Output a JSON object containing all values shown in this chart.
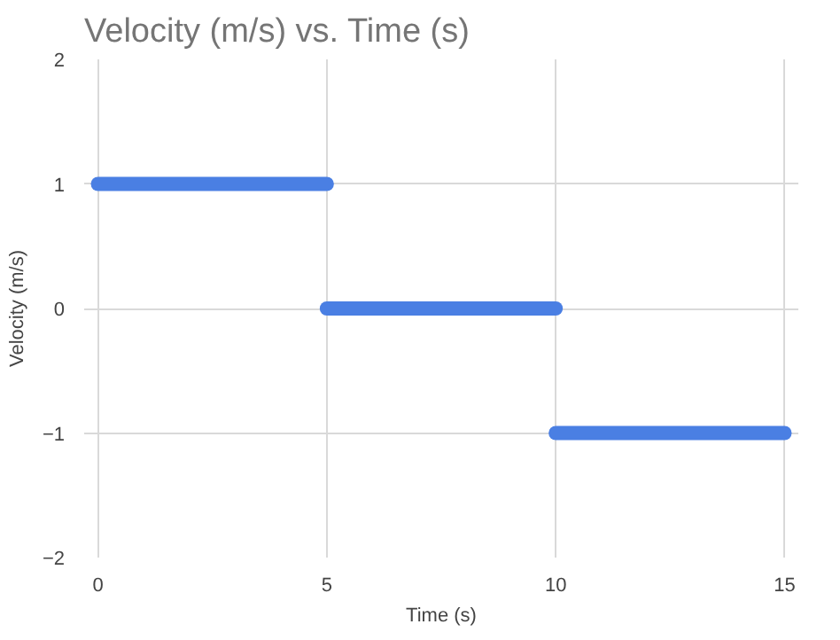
{
  "chart_data": {
    "type": "line",
    "title": "Velocity (m/s) vs. Time (s)",
    "xlabel": "Time (s)",
    "ylabel": "Velocity (m/s)",
    "series": [
      {
        "color": "#4a7fe3",
        "x": [
          0,
          5
        ],
        "values": [
          1,
          1
        ]
      },
      {
        "color": "#4a7fe3",
        "x": [
          5,
          10
        ],
        "values": [
          0,
          0
        ]
      },
      {
        "color": "#4a7fe3",
        "x": [
          10,
          15
        ],
        "values": [
          -1,
          -1
        ]
      }
    ],
    "xlim": [
      -0.3,
      15.3
    ],
    "xticks": [
      0,
      5,
      10,
      15
    ],
    "ylim": [
      -2,
      2
    ],
    "yticks": [
      -2,
      -1,
      0,
      1,
      2
    ],
    "grid": true,
    "line_style": "solid"
  }
}
